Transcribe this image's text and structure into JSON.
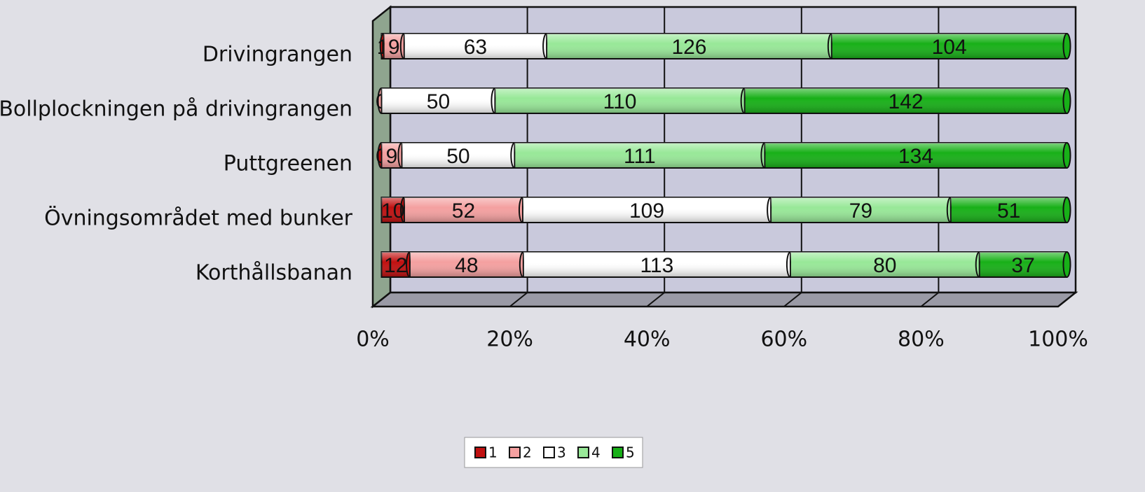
{
  "chart_data": {
    "type": "bar",
    "orientation": "horizontal",
    "stacking": "percent",
    "categories": [
      "Drivingrangen",
      "Bollplockningen på drivingrangen",
      "Puttgreenen",
      "Övningsområdet med bunker",
      "Korthållsbanan"
    ],
    "series": [
      {
        "name": "1",
        "color": "#c01010",
        "values": [
          1,
          0,
          0,
          10,
          12
        ]
      },
      {
        "name": "2",
        "color": "#f4a0a0",
        "values": [
          9,
          0,
          9,
          52,
          48
        ]
      },
      {
        "name": "3",
        "color": "#ffffff",
        "values": [
          63,
          50,
          50,
          109,
          113
        ]
      },
      {
        "name": "4",
        "color": "#98e898",
        "values": [
          126,
          110,
          111,
          79,
          80
        ]
      },
      {
        "name": "5",
        "color": "#18b018",
        "values": [
          104,
          142,
          134,
          51,
          37
        ]
      }
    ],
    "xlim": [
      0,
      100
    ],
    "xticks": [
      {
        "value": 0,
        "label": "0%"
      },
      {
        "value": 20,
        "label": "20%"
      },
      {
        "value": 40,
        "label": "40%"
      },
      {
        "value": 60,
        "label": "60%"
      },
      {
        "value": 80,
        "label": "80%"
      },
      {
        "value": 100,
        "label": "100%"
      }
    ],
    "grid": true,
    "legend": "bottom"
  }
}
